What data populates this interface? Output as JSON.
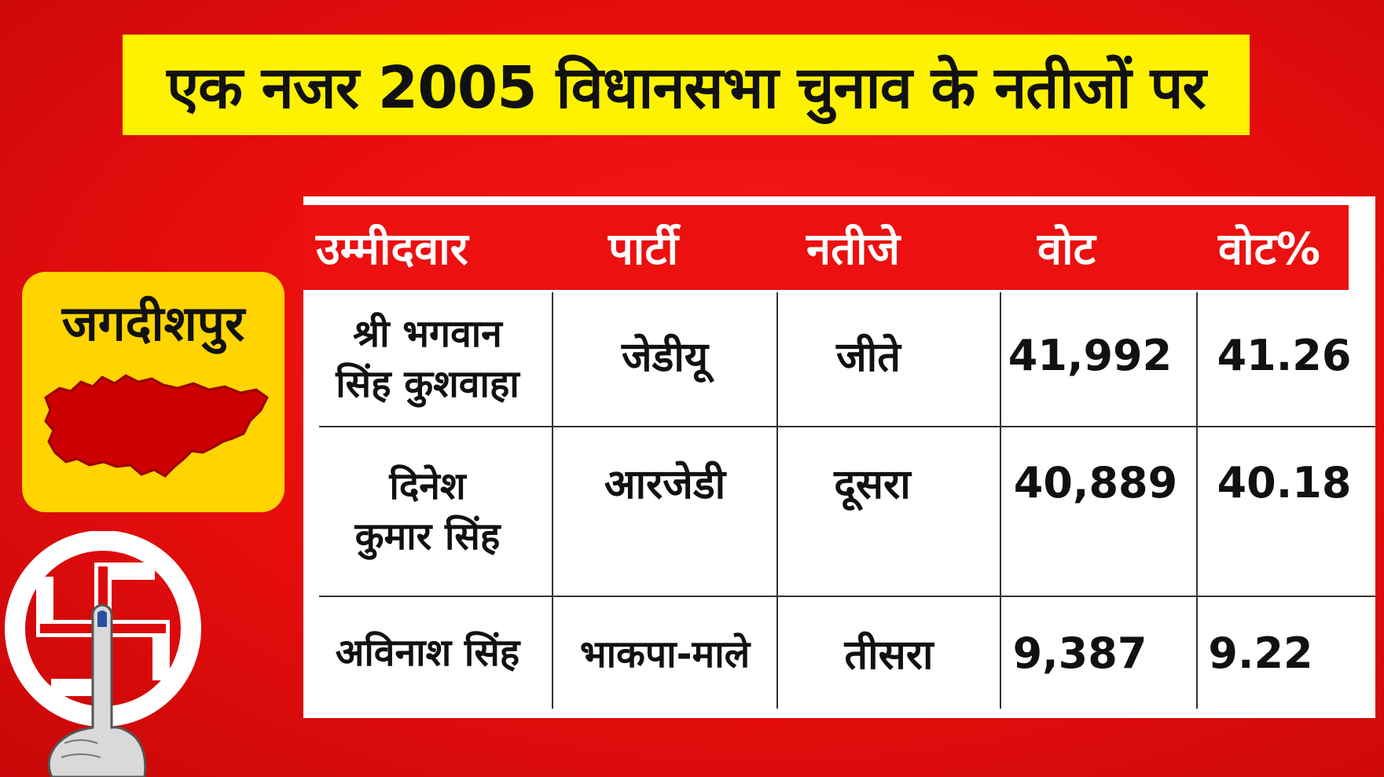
{
  "title": "एक नजर 2005 विधानसभा चुनाव के नतीजों पर",
  "constituency": "जगदीशपुर",
  "table": {
    "headers": [
      "उम्मीदवार",
      "पार्टी",
      "नतीजे",
      "वोट",
      "वोट%"
    ],
    "rows": [
      {
        "candidate_line1": "श्री भगवान",
        "candidate_line2": "सिंह कुशवाहा",
        "party": "जेडीयू",
        "result": "जीते",
        "votes": "41,992",
        "vote_pct": "41.26"
      },
      {
        "candidate_line1": "दिनेश",
        "candidate_line2": "कुमार सिंह",
        "party": "आरजेडी",
        "result": "दूसरा",
        "votes": "40,889",
        "vote_pct": "40.18"
      },
      {
        "candidate_line1": "अविनाश सिंह",
        "candidate_line2": "",
        "party": "भाकपा-माले",
        "result": "तीसरा",
        "votes": "9,387",
        "vote_pct": "9.22"
      }
    ]
  },
  "colors": {
    "background": "#e60d0d",
    "title_bg": "#fff200",
    "header_bg": "#ec1010",
    "logo_bg": "#ffd400",
    "map_fill": "#cc0000"
  },
  "icons": [
    "constituency-map-icon",
    "election-commission-emblem-icon"
  ]
}
